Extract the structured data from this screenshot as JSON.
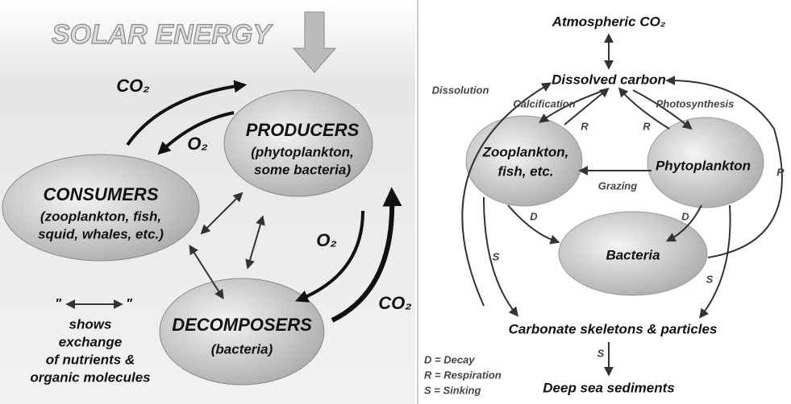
{
  "left": {
    "title": "SOLAR ENERGY",
    "producers": {
      "label": "PRODUCERS",
      "sublabel": [
        "(phytoplankton,",
        "some bacteria)"
      ]
    },
    "consumers": {
      "label": "CONSUMERS",
      "sublabel": [
        "(zooplankton, fish,",
        "squid, whales, etc.)"
      ]
    },
    "decomposers": {
      "label": "DECOMPOSERS",
      "sublabel": [
        "(bacteria)"
      ]
    },
    "flows": [
      "CO₂",
      "O₂",
      "O₂",
      "CO₂"
    ],
    "legend": {
      "quote_left": "\"",
      "quote_right": "\"",
      "text": [
        "shows",
        "exchange",
        "of nutrients &",
        "organic molecules"
      ]
    }
  },
  "right": {
    "nodes": {
      "atmospheric": "Atmospheric CO₂",
      "dissolved": "Dissolved carbon",
      "zooplankton": [
        "Zooplankton,",
        "fish, etc."
      ],
      "phytoplankton": "Phytoplankton",
      "bacteria": "Bacteria",
      "carbonate": "Carbonate skeletons & particles",
      "sediments": "Deep sea sediments"
    },
    "processes": {
      "dissolution": "Dissolution",
      "calcification": "Calcification",
      "photosynthesis": "Photosynthesis",
      "grazing": "Grazing",
      "r_zoo": "R",
      "r_phyto": "R",
      "r_bacteria": "R",
      "d_zoo": "D",
      "d_phyto": "D",
      "s_zoo": "S",
      "s_phyto": "S",
      "s_carbonate": "S"
    },
    "legend": [
      "D = Decay",
      "R = Respiration",
      "S = Sinking"
    ]
  }
}
